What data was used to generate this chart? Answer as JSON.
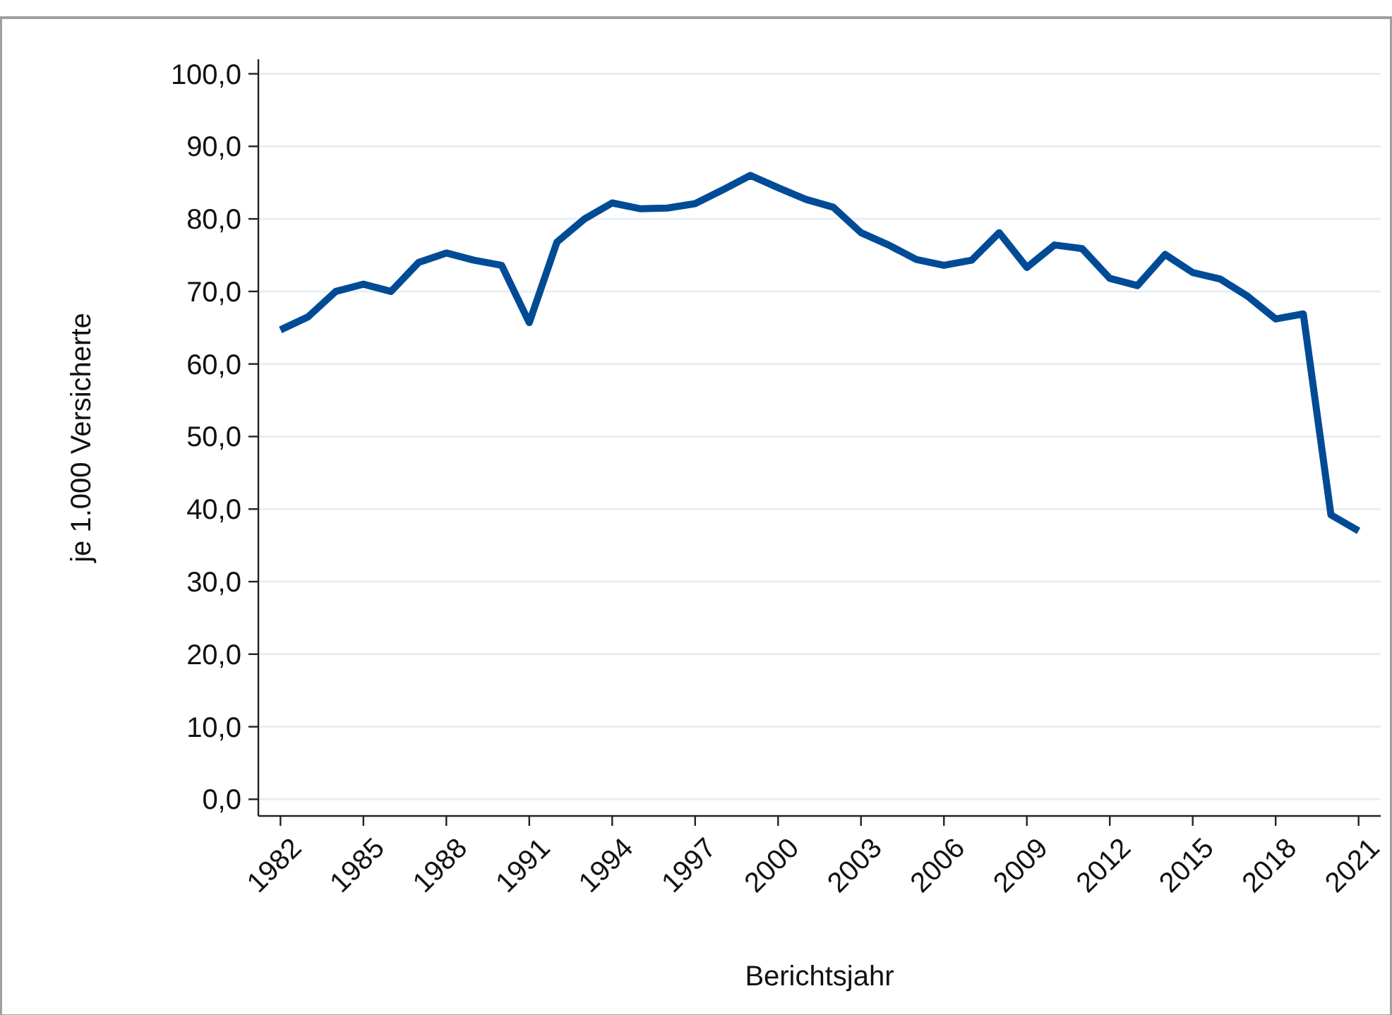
{
  "chart_data": {
    "type": "line",
    "xlabel": "Berichtsjahr",
    "ylabel": "je 1.000 Versicherte",
    "x": [
      1982,
      1983,
      1984,
      1985,
      1986,
      1987,
      1988,
      1989,
      1990,
      1991,
      1992,
      1993,
      1994,
      1995,
      1996,
      1997,
      1998,
      1999,
      2000,
      2001,
      2002,
      2003,
      2004,
      2005,
      2006,
      2007,
      2008,
      2009,
      2010,
      2011,
      2012,
      2013,
      2014,
      2015,
      2016,
      2017,
      2018,
      2019,
      2020,
      2021
    ],
    "series": [
      {
        "color": "#004b96",
        "values": [
          64.7,
          66.5,
          70.0,
          71.0,
          70.0,
          74.0,
          75.3,
          74.3,
          73.6,
          65.7,
          76.8,
          80.0,
          82.2,
          81.4,
          81.5,
          82.1,
          84.0,
          86.0,
          84.3,
          82.7,
          81.6,
          78.1,
          76.4,
          74.4,
          73.6,
          74.3,
          78.1,
          73.3,
          76.4,
          75.9,
          71.8,
          70.8,
          75.1,
          72.6,
          71.7,
          69.3,
          66.2,
          66.9,
          39.2,
          37.0
        ]
      }
    ],
    "xlim": [
      1981.2,
      2021.8
    ],
    "xticks": [
      1982,
      1985,
      1988,
      1991,
      1994,
      1997,
      2000,
      2003,
      2006,
      2009,
      2012,
      2015,
      2018,
      2021
    ],
    "ylim": [
      -2.3,
      102
    ],
    "yticks": [
      {
        "value": 0,
        "label": "0,0"
      },
      {
        "value": 10,
        "label": "10,0"
      },
      {
        "value": 20,
        "label": "20,0"
      },
      {
        "value": 30,
        "label": "30,0"
      },
      {
        "value": 40,
        "label": "40,0"
      },
      {
        "value": 50,
        "label": "50,0"
      },
      {
        "value": 60,
        "label": "60,0"
      },
      {
        "value": 70,
        "label": "70,0"
      },
      {
        "value": 80,
        "label": "80,0"
      },
      {
        "value": 90,
        "label": "90,0"
      },
      {
        "value": 100,
        "label": "100,0"
      }
    ],
    "grid": "y",
    "marker": "none",
    "line_style": "solid"
  }
}
